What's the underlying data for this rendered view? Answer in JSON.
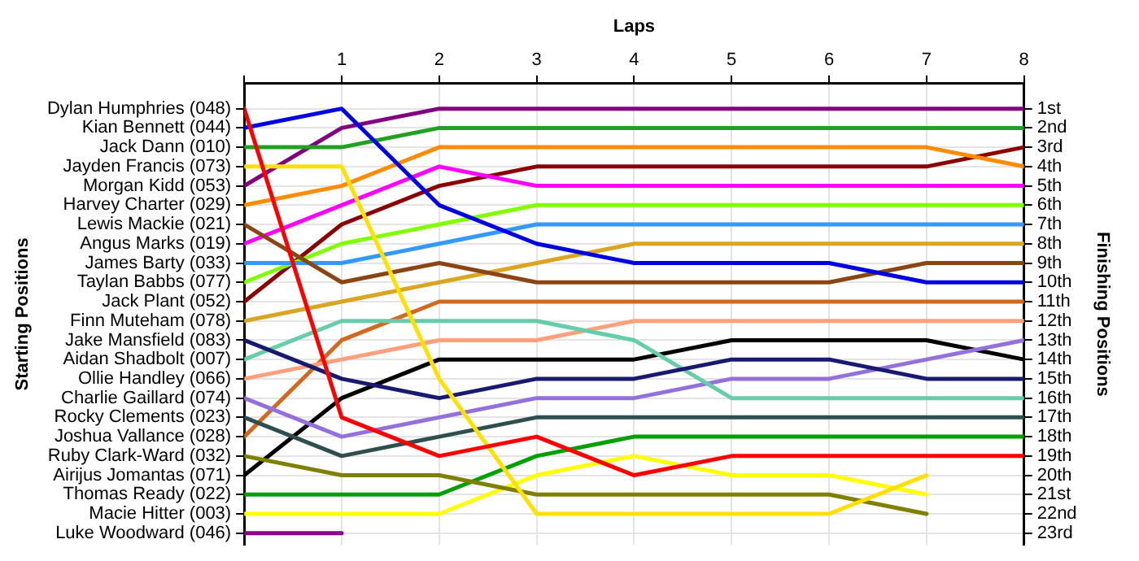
{
  "chart_data": {
    "type": "line",
    "xlabel": "Laps",
    "annotations": [
      "Starting Positions"
    ],
    "y2label": "Finishing Positions",
    "x": [
      0,
      1,
      2,
      3,
      4,
      5,
      6,
      7,
      8
    ],
    "xlim": [
      0,
      8
    ],
    "xticks": [
      {
        "value": 0,
        "label": null
      },
      1,
      2,
      3,
      4,
      5,
      6,
      7,
      8
    ],
    "y_categories": [
      "Dylan Humphries (048)",
      "Kian Bennett (044)",
      "Jack Dann (010)",
      "Jayden Francis (073)",
      "Morgan Kidd (053)",
      "Harvey Charter (029)",
      "Lewis Mackie (021)",
      "Angus Marks (019)",
      "James Barty (033)",
      "Taylan Babbs (077)",
      "Jack Plant (052)",
      "Finn Muteham (078)",
      "Jake Mansfield (083)",
      "Aidan Shadbolt (007)",
      "Ollie Handley (066)",
      "Charlie Gaillard (074)",
      "Rocky Clements (023)",
      "Joshua Vallance (028)",
      "Ruby Clark-Ward (032)",
      "Airijus Jomantas (071)",
      "Thomas Ready (022)",
      "Macie Hitter (003)",
      "Luke Woodward (046)"
    ],
    "y2lim": [
      23.6,
      -0.3
    ],
    "y2ticks": [
      {
        "value": 1,
        "label": "1st"
      },
      {
        "value": 2,
        "label": "2nd"
      },
      {
        "value": 3,
        "label": "3rd"
      },
      {
        "value": 4,
        "label": "4th"
      },
      {
        "value": 5,
        "label": "5th"
      },
      {
        "value": 6,
        "label": "6th"
      },
      {
        "value": 7,
        "label": "7th"
      },
      {
        "value": 8,
        "label": "8th"
      },
      {
        "value": 9,
        "label": "9th"
      },
      {
        "value": 10,
        "label": "10th"
      },
      {
        "value": 11,
        "label": "11th"
      },
      {
        "value": 12,
        "label": "12th"
      },
      {
        "value": 13,
        "label": "13th"
      },
      {
        "value": 14,
        "label": "14th"
      },
      {
        "value": 15,
        "label": "15th"
      },
      {
        "value": 16,
        "label": "16th"
      },
      {
        "value": 17,
        "label": "17th"
      },
      {
        "value": 18,
        "label": "18th"
      },
      {
        "value": 19,
        "label": "19th"
      },
      {
        "value": 20,
        "label": "20th"
      },
      {
        "value": 21,
        "label": "21st"
      },
      {
        "value": 22,
        "label": "22nd"
      },
      {
        "value": 23,
        "label": "23rd"
      }
    ],
    "grid": true,
    "legend": false,
    "marker": "none",
    "line_style": "solid",
    "series": [
      {
        "axis": "y2",
        "color": "#ff0000",
        "values": [
          1,
          17,
          19,
          18,
          20,
          19,
          19,
          19,
          19
        ]
      },
      {
        "axis": "y2",
        "color": "#0000e0",
        "values": [
          2,
          1,
          6,
          8,
          9,
          9,
          9,
          10,
          10
        ]
      },
      {
        "axis": "y2",
        "color": "#22a022",
        "values": [
          3,
          3,
          2,
          2,
          2,
          2,
          2,
          2,
          2
        ]
      },
      {
        "axis": "y2",
        "color": "#ffe000",
        "values": [
          4,
          4,
          15,
          22,
          22,
          22,
          22,
          20,
          null
        ]
      },
      {
        "axis": "y2",
        "color": "#800080",
        "values": [
          5,
          2,
          1,
          1,
          1,
          1,
          1,
          1,
          1
        ]
      },
      {
        "axis": "y2",
        "color": "#ff8c00",
        "values": [
          6,
          5,
          3,
          3,
          3,
          3,
          3,
          3,
          4
        ]
      },
      {
        "axis": "y2",
        "color": "#8b4513",
        "values": [
          7,
          10,
          9,
          10,
          10,
          10,
          10,
          9,
          9
        ]
      },
      {
        "axis": "y2",
        "color": "#ff00ff",
        "values": [
          8,
          6,
          4,
          5,
          5,
          5,
          5,
          5,
          5
        ]
      },
      {
        "axis": "y2",
        "color": "#3399ff",
        "values": [
          9,
          9,
          8,
          7,
          7,
          7,
          7,
          7,
          7
        ]
      },
      {
        "axis": "y2",
        "color": "#80ff00",
        "values": [
          10,
          8,
          7,
          6,
          6,
          6,
          6,
          6,
          6
        ]
      },
      {
        "axis": "y2",
        "color": "#8b0000",
        "values": [
          11,
          7,
          5,
          4,
          4,
          4,
          4,
          4,
          3
        ]
      },
      {
        "axis": "y2",
        "color": "#daa520",
        "values": [
          12,
          11,
          10,
          9,
          8,
          8,
          8,
          8,
          8
        ]
      },
      {
        "axis": "y2",
        "color": "#191970",
        "values": [
          13,
          15,
          16,
          15,
          15,
          14,
          14,
          15,
          15
        ]
      },
      {
        "axis": "y2",
        "color": "#66cdaa",
        "values": [
          14,
          12,
          12,
          12,
          13,
          16,
          16,
          16,
          16
        ]
      },
      {
        "axis": "y2",
        "color": "#ffa07a",
        "values": [
          15,
          14,
          13,
          13,
          12,
          12,
          12,
          12,
          12
        ]
      },
      {
        "axis": "y2",
        "color": "#9370db",
        "values": [
          16,
          18,
          17,
          16,
          16,
          15,
          15,
          14,
          13
        ]
      },
      {
        "axis": "y2",
        "color": "#2f4f4f",
        "values": [
          17,
          19,
          18,
          17,
          17,
          17,
          17,
          17,
          17
        ]
      },
      {
        "axis": "y2",
        "color": "#d2691e",
        "values": [
          18,
          13,
          11,
          11,
          11,
          11,
          11,
          11,
          11
        ]
      },
      {
        "axis": "y2",
        "color": "#808000",
        "values": [
          19,
          20,
          20,
          21,
          21,
          21,
          21,
          22,
          null
        ]
      },
      {
        "axis": "y2",
        "color": "#000000",
        "values": [
          20,
          16,
          14,
          14,
          14,
          13,
          13,
          13,
          14
        ]
      },
      {
        "axis": "y2",
        "color": "#00a000",
        "values": [
          21,
          21,
          21,
          19,
          18,
          18,
          18,
          18,
          18
        ]
      },
      {
        "axis": "y2",
        "color": "#ffff00",
        "values": [
          22,
          22,
          22,
          20,
          19,
          20,
          20,
          21,
          null
        ]
      },
      {
        "axis": "y2",
        "color": "#8b008b",
        "values": [
          23,
          23,
          null,
          null,
          null,
          null,
          null,
          null,
          null
        ]
      }
    ]
  }
}
